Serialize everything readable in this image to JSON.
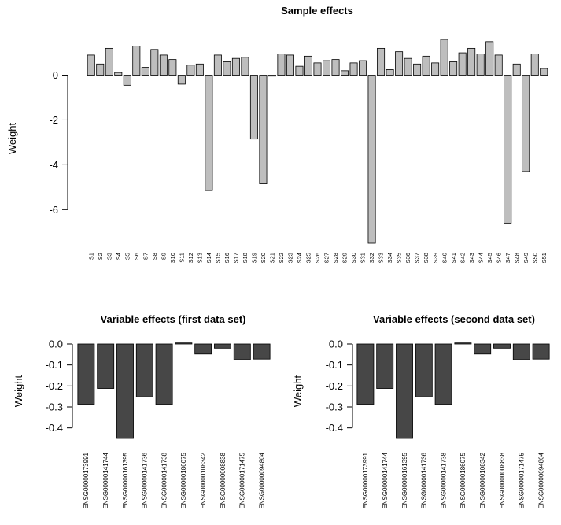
{
  "chart_data": [
    {
      "type": "bar",
      "title": "Sample effects",
      "xlabel": "",
      "ylabel": "Weight",
      "ylim": [
        -7.5,
        1.6
      ],
      "yticks": [
        0,
        -2,
        -4,
        -6
      ],
      "bar_color": "#bebebe",
      "categories": [
        "S1",
        "S2",
        "S3",
        "S4",
        "S5",
        "S6",
        "S7",
        "S8",
        "S9",
        "S10",
        "S11",
        "S12",
        "S13",
        "S14",
        "S15",
        "S16",
        "S17",
        "S18",
        "S19",
        "S20",
        "S21",
        "S22",
        "S23",
        "S24",
        "S25",
        "S26",
        "S27",
        "S28",
        "S29",
        "S30",
        "S31",
        "S32",
        "S33",
        "S34",
        "S35",
        "S36",
        "S37",
        "S38",
        "S39",
        "S40",
        "S41",
        "S42",
        "S43",
        "S44",
        "S45",
        "S46",
        "S47",
        "S48",
        "S49",
        "S50",
        "S51"
      ],
      "values": [
        0.9,
        0.5,
        1.2,
        0.12,
        -0.45,
        1.3,
        0.35,
        1.15,
        0.9,
        0.7,
        -0.4,
        0.45,
        0.5,
        -5.15,
        0.9,
        0.6,
        0.75,
        0.8,
        -2.85,
        -4.85,
        -0.04,
        0.95,
        0.9,
        0.4,
        0.85,
        0.55,
        0.65,
        0.7,
        0.2,
        0.55,
        0.65,
        -7.5,
        1.2,
        0.25,
        1.05,
        0.75,
        0.5,
        0.85,
        0.55,
        1.6,
        0.6,
        1.0,
        1.2,
        0.95,
        1.5,
        0.9,
        -6.6,
        0.5,
        -4.3,
        0.95,
        0.3
      ]
    },
    {
      "type": "bar",
      "title": "Variable effects (first data set)",
      "xlabel": "",
      "ylabel": "Weight",
      "ylim": [
        -0.45,
        0.0
      ],
      "yticks": [
        0.0,
        -0.1,
        -0.2,
        -0.3,
        -0.4
      ],
      "ytick_labels": [
        "0.0",
        "-0.1",
        "-0.2",
        "-0.3",
        "-0.4"
      ],
      "bar_color": "#474747",
      "categories": [
        "ENSG00000173991",
        "ENSG00000141744",
        "ENSG00000161395",
        "ENSG00000141736",
        "ENSG00000141738",
        "ENSG00000186075",
        "ENSG00000108342",
        "ENSG00000008838",
        "ENSG00000171475",
        "ENSG00000094804"
      ],
      "values": [
        -0.287,
        -0.212,
        -0.45,
        -0.252,
        -0.288,
        0.005,
        -0.048,
        -0.02,
        -0.075,
        -0.072
      ]
    },
    {
      "type": "bar",
      "title": "Variable effects (second data set)",
      "xlabel": "",
      "ylabel": "Weight",
      "ylim": [
        -0.45,
        0.0
      ],
      "yticks": [
        0.0,
        -0.1,
        -0.2,
        -0.3,
        -0.4
      ],
      "ytick_labels": [
        "0.0",
        "-0.1",
        "-0.2",
        "-0.3",
        "-0.4"
      ],
      "bar_color": "#474747",
      "categories": [
        "ENSG00000173991",
        "ENSG00000141744",
        "ENSG00000161395",
        "ENSG00000141736",
        "ENSG00000141738",
        "ENSG00000186075",
        "ENSG00000108342",
        "ENSG00000008838",
        "ENSG00000171475",
        "ENSG00000094804"
      ],
      "values": [
        -0.287,
        -0.212,
        -0.45,
        -0.252,
        -0.288,
        0.005,
        -0.048,
        -0.02,
        -0.075,
        -0.072
      ]
    }
  ]
}
